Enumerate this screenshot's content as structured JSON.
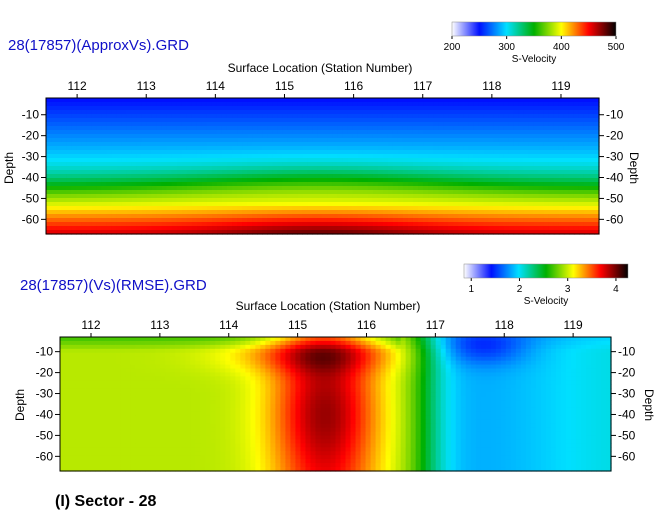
{
  "caption": "(I) Sector - 28",
  "colorscale": [
    "#ffffff",
    "#0010ff",
    "#00e0ff",
    "#00b000",
    "#ffff00",
    "#ff0000",
    "#000000"
  ],
  "chart_data": [
    {
      "type": "heatmap",
      "title": "28(17857)(ApproxVs).GRD",
      "xlabel": "Surface Location (Station Number)",
      "ylabel": "Depth",
      "ylabel_right": "Depth",
      "x_ticks": [
        "112",
        "113",
        "114",
        "115",
        "116",
        "117",
        "118",
        "119"
      ],
      "y_ticks": [
        "-10",
        "-20",
        "-30",
        "-40",
        "-50",
        "-60"
      ],
      "xlim": [
        111.55,
        119.55
      ],
      "ylim": [
        -67,
        -2
      ],
      "colorbar": {
        "label": "S-Velocity",
        "ticks": [
          "200",
          "300",
          "400",
          "500"
        ],
        "range": [
          200,
          500
        ]
      },
      "description_values": {
        "surface_velocity": 230,
        "bottom_velocity": 500,
        "center_station": 115.5
      }
    },
    {
      "type": "heatmap",
      "title": "28(17857)(Vs)(RMSE).GRD",
      "xlabel": "Surface Location (Station Number)",
      "ylabel": "Depth",
      "ylabel_right": "Depth",
      "x_ticks": [
        "112",
        "113",
        "114",
        "115",
        "116",
        "117",
        "118",
        "119"
      ],
      "y_ticks": [
        "-10",
        "-20",
        "-30",
        "-40",
        "-50",
        "-60"
      ],
      "xlim": [
        111.55,
        119.55
      ],
      "ylim": [
        -67,
        -3
      ],
      "colorbar": {
        "label": "S-Velocity",
        "ticks": [
          "1",
          "2",
          "3",
          "4"
        ],
        "range": [
          0.85,
          4.25
        ]
      },
      "description_values": {
        "max_center_station": 115.4,
        "max_value": 4.25,
        "min_center_station": 117.6,
        "min_value": 1.1
      }
    }
  ]
}
